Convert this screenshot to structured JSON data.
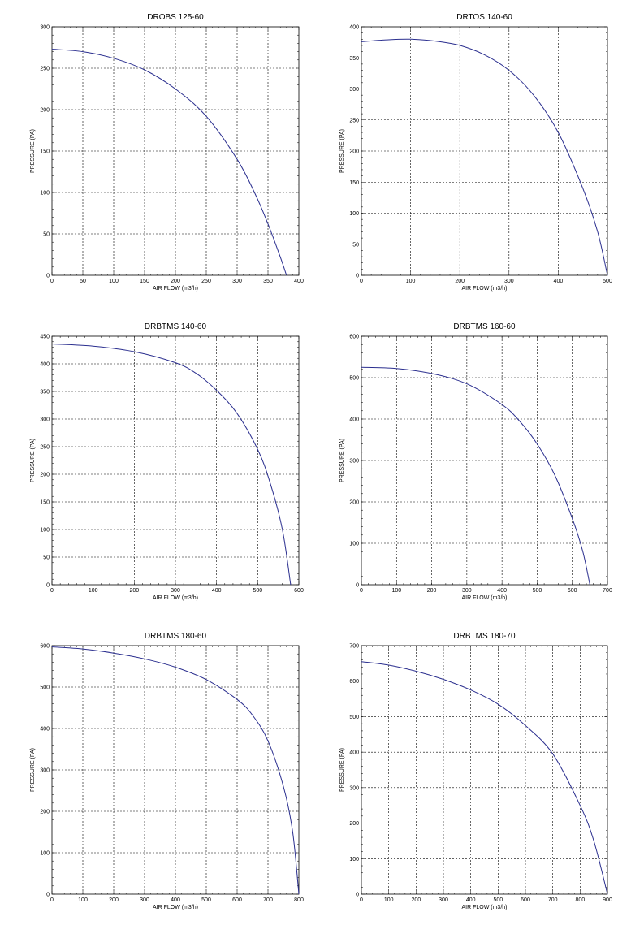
{
  "chart_data": [
    {
      "type": "line",
      "title": "DROBS 125-60",
      "xlabel": "AIR FLOW (m3/h)",
      "ylabel": "PRESSURE (PA)",
      "xlim": [
        0,
        400
      ],
      "ylim": [
        0,
        300
      ],
      "x_ticks": [
        0,
        50,
        100,
        150,
        200,
        250,
        300,
        350,
        400
      ],
      "y_ticks": [
        0,
        50,
        100,
        150,
        200,
        250,
        300
      ],
      "grid": true,
      "series": [
        {
          "color": "#2b2f8f",
          "x": [
            0,
            50,
            100,
            150,
            200,
            250,
            300,
            330,
            350,
            370,
            380
          ],
          "y": [
            273,
            270,
            262,
            248,
            225,
            192,
            140,
            97,
            62,
            22,
            0
          ]
        }
      ]
    },
    {
      "type": "line",
      "title": "DRTOS 140-60",
      "xlabel": "AIR FLOW (m3/h)",
      "ylabel": "PRESSURE (PA)",
      "xlim": [
        0,
        500
      ],
      "ylim": [
        0,
        400
      ],
      "x_ticks": [
        0,
        100,
        200,
        300,
        400,
        500
      ],
      "y_ticks": [
        0,
        50,
        100,
        150,
        200,
        250,
        300,
        350,
        400
      ],
      "grid": true,
      "series": [
        {
          "color": "#2b2f8f",
          "x": [
            0,
            50,
            100,
            150,
            200,
            250,
            300,
            350,
            400,
            450,
            480,
            500
          ],
          "y": [
            376,
            379,
            380,
            377,
            370,
            355,
            330,
            290,
            230,
            140,
            70,
            0
          ]
        }
      ]
    },
    {
      "type": "line",
      "title": "DRBTMS 140-60",
      "xlabel": "AIR FLOW (m3/h)",
      "ylabel": "PRESSURE (PA)",
      "xlim": [
        0,
        600
      ],
      "ylim": [
        0,
        450
      ],
      "x_ticks": [
        0,
        100,
        200,
        300,
        400,
        500,
        600
      ],
      "y_ticks": [
        0,
        50,
        100,
        150,
        200,
        250,
        300,
        350,
        400,
        450
      ],
      "grid": true,
      "series": [
        {
          "color": "#2b2f8f",
          "x": [
            0,
            100,
            200,
            300,
            350,
            400,
            450,
            500,
            530,
            560,
            580
          ],
          "y": [
            436,
            432,
            422,
            402,
            383,
            352,
            310,
            245,
            185,
            100,
            0
          ]
        }
      ]
    },
    {
      "type": "line",
      "title": "DRBTMS 160-60",
      "xlabel": "AIR FLOW (m3/h)",
      "ylabel": "PRESSURE (PA)",
      "xlim": [
        0,
        700
      ],
      "ylim": [
        0,
        600
      ],
      "x_ticks": [
        0,
        100,
        200,
        300,
        400,
        500,
        600,
        700
      ],
      "y_ticks": [
        0,
        100,
        200,
        300,
        400,
        500,
        600
      ],
      "grid": true,
      "series": [
        {
          "color": "#2b2f8f",
          "x": [
            0,
            100,
            200,
            300,
            400,
            450,
            500,
            550,
            600,
            630,
            650
          ],
          "y": [
            525,
            522,
            510,
            485,
            435,
            395,
            340,
            265,
            160,
            80,
            0
          ]
        }
      ]
    },
    {
      "type": "line",
      "title": "DRBTMS 180-60",
      "xlabel": "AIR FLOW (m3/h)",
      "ylabel": "PRESSURE (PA)",
      "xlim": [
        0,
        800
      ],
      "ylim": [
        0,
        600
      ],
      "x_ticks": [
        0,
        100,
        200,
        300,
        400,
        500,
        600,
        700,
        800
      ],
      "y_ticks": [
        0,
        100,
        200,
        300,
        400,
        500,
        600
      ],
      "grid": true,
      "series": [
        {
          "color": "#2b2f8f",
          "x": [
            0,
            100,
            200,
            300,
            400,
            500,
            600,
            650,
            700,
            750,
            780,
            800
          ],
          "y": [
            597,
            592,
            582,
            568,
            548,
            518,
            470,
            432,
            370,
            260,
            150,
            0
          ]
        }
      ]
    },
    {
      "type": "line",
      "title": "DRBTMS 180-70",
      "xlabel": "AIR FLOW (m3/h)",
      "ylabel": "PRESSURE (PA)",
      "xlim": [
        0,
        900
      ],
      "ylim": [
        0,
        700
      ],
      "x_ticks": [
        0,
        100,
        200,
        300,
        400,
        500,
        600,
        700,
        800,
        900
      ],
      "y_ticks": [
        0,
        100,
        200,
        300,
        400,
        500,
        600,
        700
      ],
      "grid": true,
      "series": [
        {
          "color": "#2b2f8f",
          "x": [
            0,
            100,
            200,
            300,
            400,
            500,
            600,
            700,
            800,
            850,
            900
          ],
          "y": [
            655,
            645,
            628,
            605,
            575,
            535,
            475,
            395,
            250,
            150,
            0
          ]
        }
      ]
    }
  ]
}
